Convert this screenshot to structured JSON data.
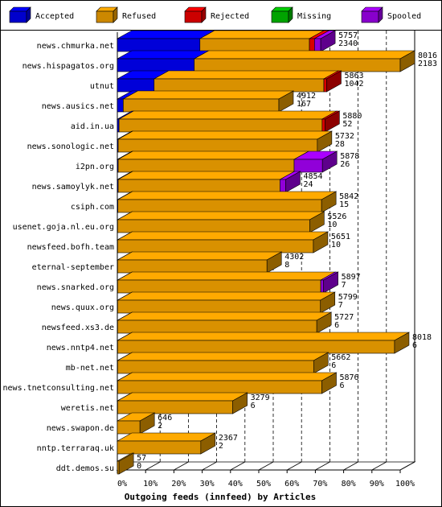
{
  "chart_data": {
    "type": "bar",
    "orientation": "horizontal",
    "stacked": true,
    "title": "Outgoing feeds (innfeed) by Articles",
    "xlabel": "Outgoing feeds (innfeed) by Articles",
    "xlim": [
      0,
      100
    ],
    "x_ticks": [
      "0%",
      "10%",
      "20%",
      "30%",
      "40%",
      "50%",
      "60%",
      "70%",
      "80%",
      "90%",
      "100%"
    ],
    "grid": true,
    "legend_position": "top",
    "legend": [
      {
        "name": "Accepted",
        "color": "#0000ff"
      },
      {
        "name": "Refused",
        "color": "#ffaa00"
      },
      {
        "name": "Rejected",
        "color": "#ff0000"
      },
      {
        "name": "Missing",
        "color": "#00cc00"
      },
      {
        "name": "Spooled",
        "color": "#aa00ff"
      }
    ],
    "categories": [
      "news.chmurka.net",
      "news.hispagatos.org",
      "utnut",
      "news.ausics.net",
      "aid.in.ua",
      "news.sonologic.net",
      "i2pn.org",
      "news.samoylyk.net",
      "csiph.com",
      "usenet.goja.nl.eu.org",
      "newsfeed.bofh.team",
      "eternal-september",
      "news.snarked.org",
      "news.quux.org",
      "newsfeed.xs3.de",
      "news.nntp4.net",
      "mb-net.net",
      "news.tnetconsulting.net",
      "weretis.net",
      "news.swapon.de",
      "nntp.terraraq.uk",
      "ddt.demos.su"
    ],
    "offered": [
      5757,
      8016,
      5863,
      4912,
      5880,
      5732,
      5878,
      4854,
      5842,
      5526,
      5651,
      4302,
      5897,
      5799,
      5727,
      8018,
      5662,
      5876,
      3279,
      646,
      2367,
      57
    ],
    "accepted_counts": [
      2340,
      2183,
      1042,
      167,
      52,
      28,
      26,
      24,
      15,
      10,
      10,
      8,
      7,
      7,
      6,
      6,
      6,
      6,
      6,
      2,
      2,
      0
    ],
    "series": [
      {
        "name": "Accepted",
        "values": [
          29.2,
          27.2,
          13.0,
          2.1,
          0.6,
          0.3,
          0.3,
          0.3,
          0.2,
          0.1,
          0.1,
          0.1,
          0.1,
          0.1,
          0.1,
          0.1,
          0.1,
          0.1,
          0.1,
          0.0,
          0.0,
          0.0
        ]
      },
      {
        "name": "Refused",
        "values": [
          38.7,
          72.8,
          60.0,
          55.0,
          71.8,
          70.4,
          62.2,
          57.2,
          72.0,
          67.9,
          69.2,
          52.8,
          71.8,
          71.7,
          70.4,
          97.9,
          69.3,
          72.2,
          40.7,
          8.0,
          29.5,
          0.6
        ]
      },
      {
        "name": "Rejected",
        "values": [
          1.8,
          0,
          1.0,
          0,
          1.0,
          0,
          0,
          0,
          0,
          0,
          0,
          0,
          0,
          0,
          0,
          0,
          0,
          0,
          0,
          0,
          0,
          0
        ]
      },
      {
        "name": "Missing",
        "values": [
          0,
          0,
          0,
          0,
          0,
          0,
          0,
          0,
          0,
          0,
          0,
          0,
          0,
          0,
          0,
          0,
          0,
          0,
          0,
          0,
          0,
          0
        ]
      },
      {
        "name": "Spooled",
        "values": [
          2.2,
          0,
          0,
          0,
          0,
          0,
          10.0,
          2.0,
          0,
          0,
          0,
          0,
          1.0,
          0,
          0,
          0,
          0,
          0,
          0,
          0,
          0,
          0
        ]
      }
    ]
  }
}
